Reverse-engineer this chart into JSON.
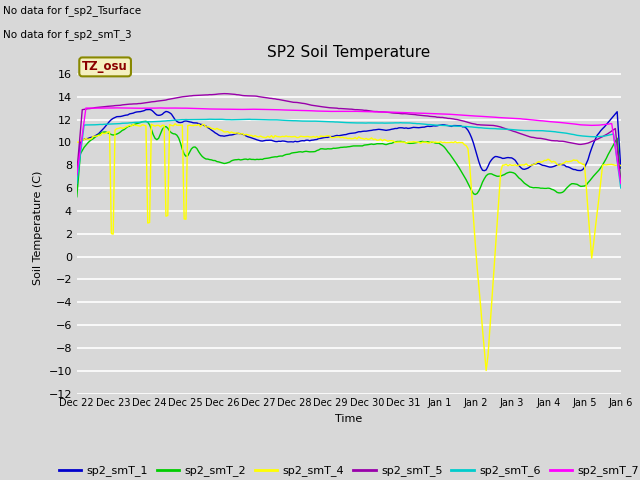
{
  "title": "SP2 Soil Temperature",
  "ylabel": "Soil Temperature (C)",
  "xlabel": "Time",
  "note1": "No data for f_sp2_Tsurface",
  "note2": "No data for f_sp2_smT_3",
  "tz_label": "TZ_osu",
  "ylim": [
    -12,
    17
  ],
  "yticks": [
    -12,
    -10,
    -8,
    -6,
    -4,
    -2,
    0,
    2,
    4,
    6,
    8,
    10,
    12,
    14,
    16
  ],
  "fig_bg": "#d8d8d8",
  "plot_bg": "#d8d8d8",
  "grid_color": "#ffffff",
  "colors": {
    "sp2_smT_1": "#0000cc",
    "sp2_smT_2": "#00cc00",
    "sp2_smT_4": "#ffff00",
    "sp2_smT_5": "#9900aa",
    "sp2_smT_6": "#00cccc",
    "sp2_smT_7": "#ff00ff"
  },
  "x_tick_labels": [
    "Dec 22",
    "Dec 23",
    "Dec 24",
    "Dec 25",
    "Dec 26",
    "Dec 27",
    "Dec 28",
    "Dec 29",
    "Dec 30",
    "Dec 31",
    "Jan 1",
    "Jan 2",
    "Jan 3",
    "Jan 4",
    "Jan 5",
    "Jan 6"
  ]
}
